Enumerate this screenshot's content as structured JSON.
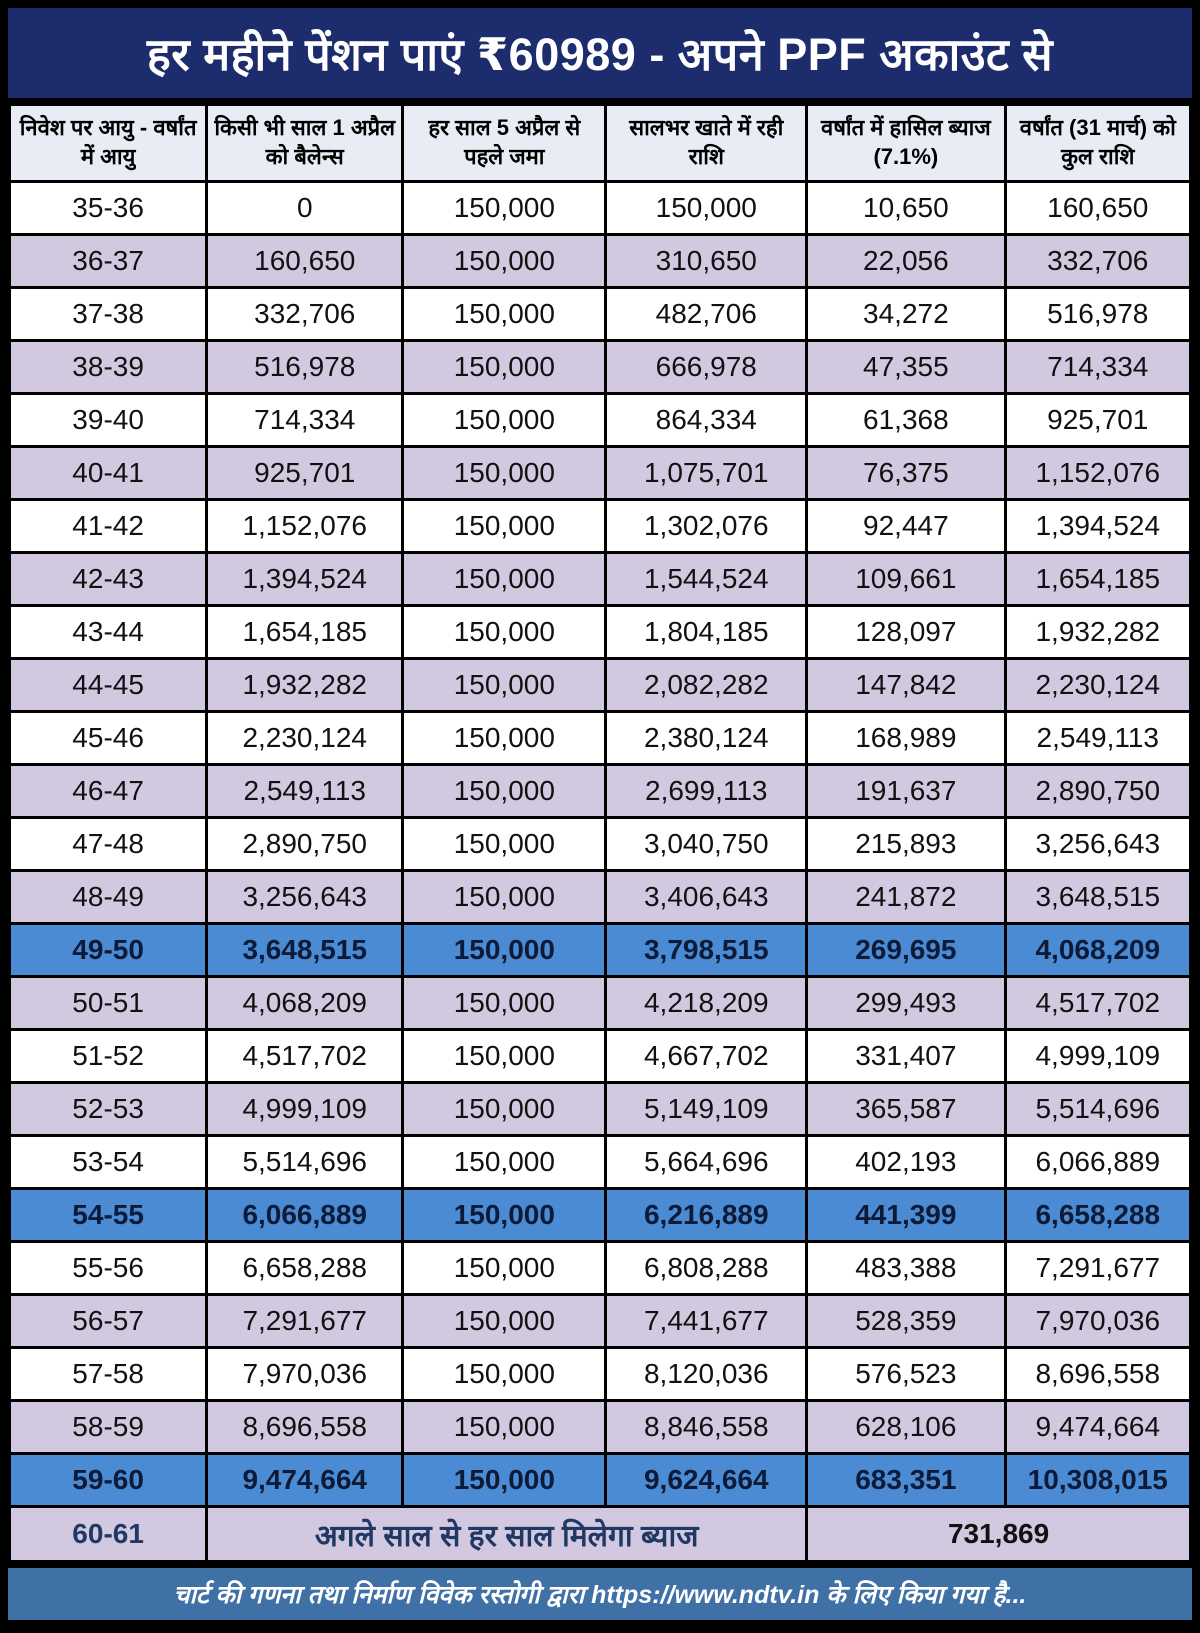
{
  "colors": {
    "title_bg": "#1c2c6d",
    "header_bg": "#e8ecf4",
    "row_alt_bg": "#d2c8e0",
    "row_white_bg": "#ffffff",
    "highlight_bg": "#4b8bd3",
    "highlight_text": "#0d1b38",
    "merged_text": "#1f3864",
    "footer_bg": "#3f70a6",
    "border": "#000000"
  },
  "chart_data": {
    "type": "table",
    "title": "हर महीने पेंशन पाएं ₹60989 - अपने PPF अकाउंट से",
    "interest_rate": "7.1%",
    "columns": [
      "निवेश पर आयु - वर्षांत में आयु",
      "किसी भी साल 1 अप्रैल को बैलेन्स",
      "हर साल 5 अप्रैल से पहले जमा",
      "सालभर खाते में रही राशि",
      "वर्षांत में हासिल ब्याज (7.1%)",
      "वर्षांत (31 मार्च) को कुल राशि"
    ],
    "rows": [
      {
        "age": "35-36",
        "values": [
          "0",
          "150,000",
          "150,000",
          "10,650",
          "160,650"
        ],
        "highlight": false
      },
      {
        "age": "36-37",
        "values": [
          "160,650",
          "150,000",
          "310,650",
          "22,056",
          "332,706"
        ],
        "highlight": false
      },
      {
        "age": "37-38",
        "values": [
          "332,706",
          "150,000",
          "482,706",
          "34,272",
          "516,978"
        ],
        "highlight": false
      },
      {
        "age": "38-39",
        "values": [
          "516,978",
          "150,000",
          "666,978",
          "47,355",
          "714,334"
        ],
        "highlight": false
      },
      {
        "age": "39-40",
        "values": [
          "714,334",
          "150,000",
          "864,334",
          "61,368",
          "925,701"
        ],
        "highlight": false
      },
      {
        "age": "40-41",
        "values": [
          "925,701",
          "150,000",
          "1,075,701",
          "76,375",
          "1,152,076"
        ],
        "highlight": false
      },
      {
        "age": "41-42",
        "values": [
          "1,152,076",
          "150,000",
          "1,302,076",
          "92,447",
          "1,394,524"
        ],
        "highlight": false
      },
      {
        "age": "42-43",
        "values": [
          "1,394,524",
          "150,000",
          "1,544,524",
          "109,661",
          "1,654,185"
        ],
        "highlight": false
      },
      {
        "age": "43-44",
        "values": [
          "1,654,185",
          "150,000",
          "1,804,185",
          "128,097",
          "1,932,282"
        ],
        "highlight": false
      },
      {
        "age": "44-45",
        "values": [
          "1,932,282",
          "150,000",
          "2,082,282",
          "147,842",
          "2,230,124"
        ],
        "highlight": false
      },
      {
        "age": "45-46",
        "values": [
          "2,230,124",
          "150,000",
          "2,380,124",
          "168,989",
          "2,549,113"
        ],
        "highlight": false
      },
      {
        "age": "46-47",
        "values": [
          "2,549,113",
          "150,000",
          "2,699,113",
          "191,637",
          "2,890,750"
        ],
        "highlight": false
      },
      {
        "age": "47-48",
        "values": [
          "2,890,750",
          "150,000",
          "3,040,750",
          "215,893",
          "3,256,643"
        ],
        "highlight": false
      },
      {
        "age": "48-49",
        "values": [
          "3,256,643",
          "150,000",
          "3,406,643",
          "241,872",
          "3,648,515"
        ],
        "highlight": false
      },
      {
        "age": "49-50",
        "values": [
          "3,648,515",
          "150,000",
          "3,798,515",
          "269,695",
          "4,068,209"
        ],
        "highlight": true
      },
      {
        "age": "50-51",
        "values": [
          "4,068,209",
          "150,000",
          "4,218,209",
          "299,493",
          "4,517,702"
        ],
        "highlight": false
      },
      {
        "age": "51-52",
        "values": [
          "4,517,702",
          "150,000",
          "4,667,702",
          "331,407",
          "4,999,109"
        ],
        "highlight": false
      },
      {
        "age": "52-53",
        "values": [
          "4,999,109",
          "150,000",
          "5,149,109",
          "365,587",
          "5,514,696"
        ],
        "highlight": false
      },
      {
        "age": "53-54",
        "values": [
          "5,514,696",
          "150,000",
          "5,664,696",
          "402,193",
          "6,066,889"
        ],
        "highlight": false
      },
      {
        "age": "54-55",
        "values": [
          "6,066,889",
          "150,000",
          "6,216,889",
          "441,399",
          "6,658,288"
        ],
        "highlight": true
      },
      {
        "age": "55-56",
        "values": [
          "6,658,288",
          "150,000",
          "6,808,288",
          "483,388",
          "7,291,677"
        ],
        "highlight": false
      },
      {
        "age": "56-57",
        "values": [
          "7,291,677",
          "150,000",
          "7,441,677",
          "528,359",
          "7,970,036"
        ],
        "highlight": false
      },
      {
        "age": "57-58",
        "values": [
          "7,970,036",
          "150,000",
          "8,120,036",
          "576,523",
          "8,696,558"
        ],
        "highlight": false
      },
      {
        "age": "58-59",
        "values": [
          "8,696,558",
          "150,000",
          "8,846,558",
          "628,106",
          "9,474,664"
        ],
        "highlight": false
      },
      {
        "age": "59-60",
        "values": [
          "9,474,664",
          "150,000",
          "9,624,664",
          "683,351",
          "10,308,015"
        ],
        "highlight": true
      }
    ],
    "merged_row": {
      "age": "60-61",
      "note": "अगले साल से हर साल मिलेगा ब्याज",
      "value": "731,869"
    },
    "footer": "चार्ट की गणना तथा निर्माण विवेक रस्तोगी द्वारा https://www.ndtv.in के लिए किया गया है..."
  }
}
